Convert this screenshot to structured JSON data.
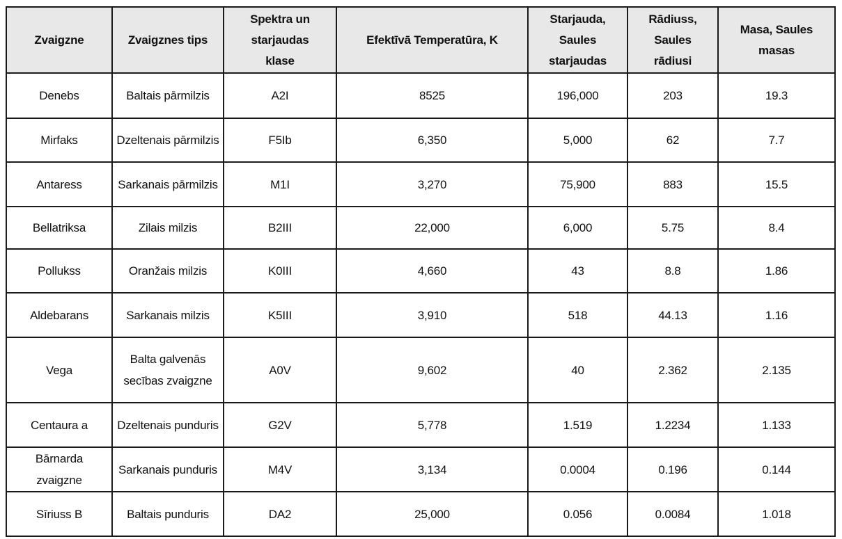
{
  "table": {
    "headers": [
      "Zvaigzne",
      "Zvaigznes tips",
      "Spektra un starjaudas klase",
      "Efektīvā Temperatūra, K",
      "Starjauda, Saules starjaudas",
      "Rādiuss, Saules rādiusi",
      "Masa, Saules masas"
    ],
    "rows": [
      [
        "Denebs",
        "Baltais pārmilzis",
        "A2I",
        "8525",
        "196,000",
        "203",
        "19.3"
      ],
      [
        "Mirfaks",
        "Dzeltenais pārmilzis",
        "F5Ib",
        "6,350",
        "5,000",
        "62",
        "7.7"
      ],
      [
        "Antaress",
        "Sarkanais pārmilzis",
        "M1I",
        "3,270",
        "75,900",
        "883",
        "15.5"
      ],
      [
        "Bellatriksa",
        "Zilais milzis",
        "B2III",
        "22,000",
        "6,000",
        "5.75",
        "8.4"
      ],
      [
        "Pollukss",
        "Oranžais milzis",
        "K0III",
        "4,660",
        "43",
        "8.8",
        "1.86"
      ],
      [
        "Aldebarans",
        "Sarkanais milzis",
        "K5III",
        "3,910",
        "518",
        "44.13",
        "1.16"
      ],
      [
        "Vega",
        "Balta galvenās secības zvaigzne",
        "A0V",
        "9,602",
        "40",
        "2.362",
        "2.135"
      ],
      [
        "Centaura a",
        "Dzeltenais punduris",
        "G2V",
        "5,778",
        "1.519",
        "1.2234",
        "1.133"
      ],
      [
        "Bārnarda zvaigzne",
        "Sarkanais punduris",
        "M4V",
        "3,134",
        "0.0004",
        "0.196",
        "0.144"
      ],
      [
        "Sīriuss B",
        "Baltais punduris",
        "DA2",
        "25,000",
        "0.056",
        "0.0084",
        "1.018"
      ]
    ]
  }
}
